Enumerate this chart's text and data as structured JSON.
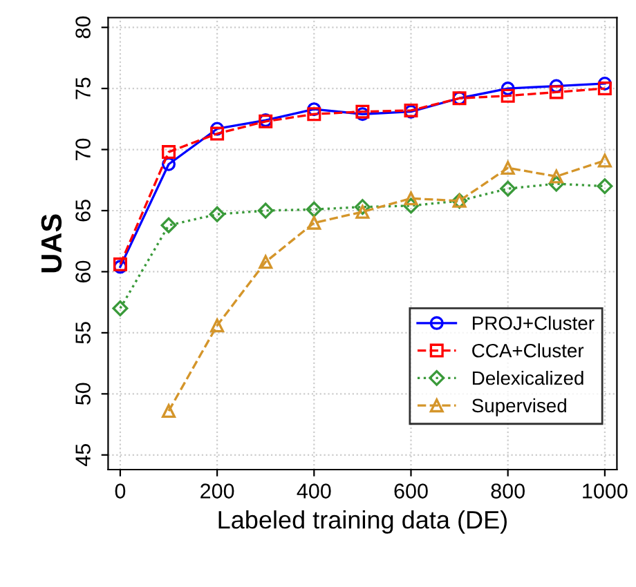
{
  "chart_data": {
    "type": "line",
    "xlabel": "Labeled training data (DE)",
    "ylabel": "UAS",
    "xlim": [
      -25,
      1025
    ],
    "ylim": [
      43.8,
      80.8
    ],
    "xticks": [
      0,
      200,
      400,
      600,
      800,
      1000
    ],
    "yticks": [
      45,
      50,
      55,
      60,
      65,
      70,
      75,
      80
    ],
    "grid": true,
    "legend": "bottom right",
    "series": [
      {
        "name": "PROJ+Cluster",
        "color": "#0000ff",
        "marker": "circle",
        "line_style": "solid",
        "x": [
          0,
          100,
          200,
          300,
          400,
          500,
          600,
          700,
          800,
          900,
          1000
        ],
        "values": [
          60.4,
          68.8,
          71.7,
          72.4,
          73.3,
          72.9,
          73.1,
          74.2,
          75.0,
          75.2,
          75.4
        ]
      },
      {
        "name": "CCA+Cluster",
        "color": "#ff0000",
        "marker": "square",
        "line_style": "dashed",
        "x": [
          0,
          100,
          200,
          300,
          400,
          500,
          600,
          700,
          800,
          900,
          1000
        ],
        "values": [
          60.6,
          69.8,
          71.3,
          72.3,
          72.9,
          73.1,
          73.2,
          74.2,
          74.4,
          74.7,
          75.0
        ]
      },
      {
        "name": "Delexicalized",
        "color": "#3a9a3a",
        "marker": "diamond",
        "line_style": "dotted",
        "x": [
          0,
          100,
          200,
          300,
          400,
          500,
          600,
          700,
          800,
          900,
          1000
        ],
        "values": [
          57.0,
          63.8,
          64.7,
          65.0,
          65.1,
          65.3,
          65.4,
          65.8,
          66.8,
          67.2,
          67.0
        ]
      },
      {
        "name": "Supervised",
        "color": "#d4952a",
        "marker": "triangle",
        "line_style": "dashed",
        "x": [
          100,
          200,
          300,
          400,
          500,
          600,
          700,
          800,
          900,
          1000
        ],
        "values": [
          48.6,
          55.6,
          60.8,
          64.0,
          64.9,
          66.0,
          65.8,
          68.5,
          67.8,
          69.1
        ]
      }
    ]
  }
}
